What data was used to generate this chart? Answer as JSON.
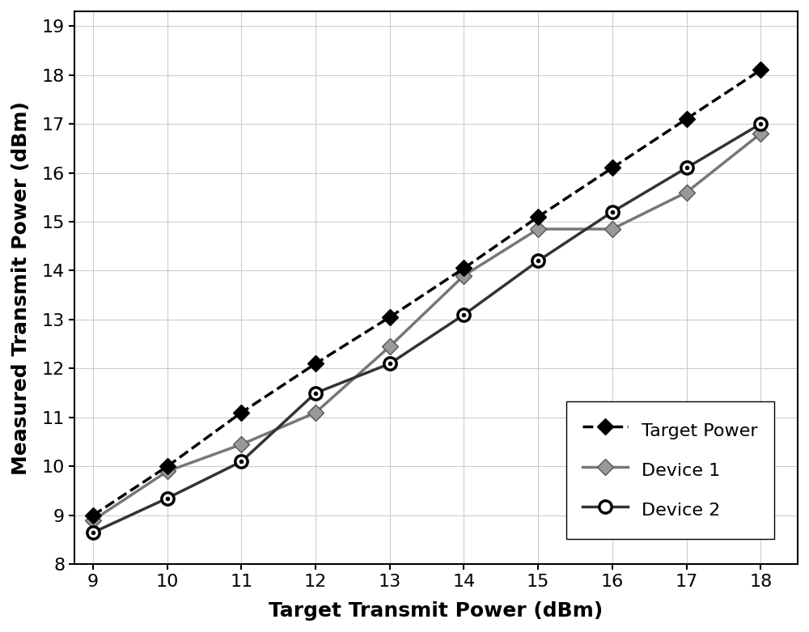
{
  "x": [
    9,
    10,
    11,
    12,
    13,
    14,
    15,
    16,
    17,
    18
  ],
  "target_power": [
    9.0,
    10.0,
    11.1,
    12.1,
    13.05,
    14.05,
    15.1,
    16.1,
    17.1,
    18.1
  ],
  "device1": [
    8.9,
    9.9,
    10.45,
    11.1,
    12.45,
    13.9,
    14.85,
    14.85,
    15.6,
    16.8
  ],
  "device2": [
    8.65,
    9.35,
    10.1,
    11.5,
    12.1,
    13.1,
    14.2,
    15.2,
    16.1,
    17.0
  ],
  "xlabel": "Target Transmit Power (dBm)",
  "ylabel": "Measured Transmit Power (dBm)",
  "xlim": [
    8.75,
    18.5
  ],
  "ylim": [
    8.0,
    19.3
  ],
  "xticks": [
    9,
    10,
    11,
    12,
    13,
    14,
    15,
    16,
    17,
    18
  ],
  "yticks": [
    8,
    9,
    10,
    11,
    12,
    13,
    14,
    15,
    16,
    17,
    18,
    19
  ],
  "target_color": "#000000",
  "device1_color": "#777777",
  "device2_color": "#333333",
  "grid_color": "#cccccc",
  "legend_labels": [
    "Target Power",
    "Device 1",
    "Device 2"
  ]
}
